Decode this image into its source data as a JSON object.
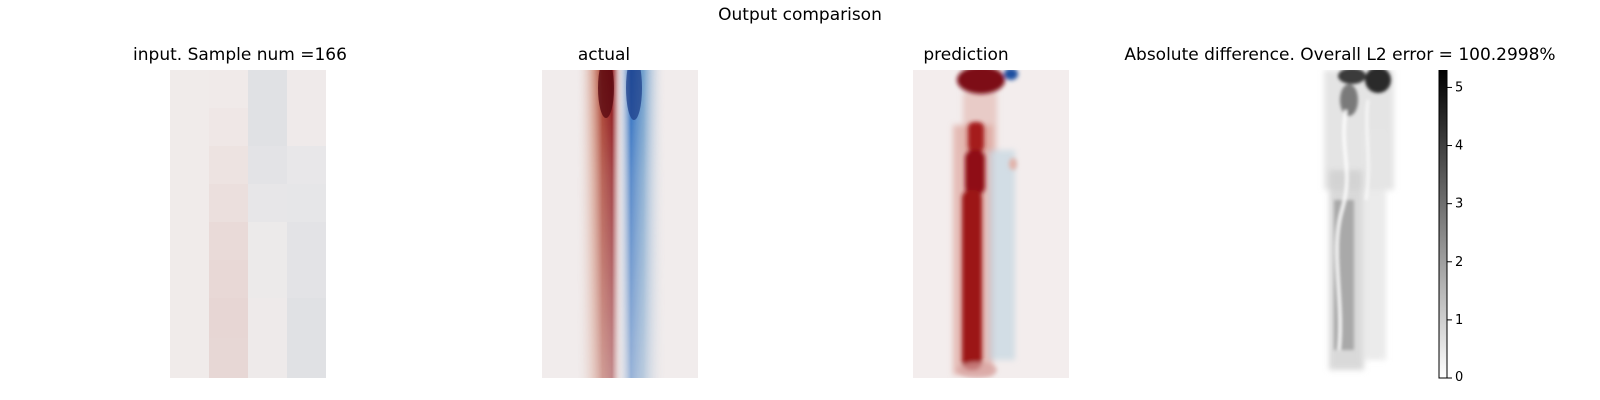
{
  "figure": {
    "title": "Output comparison"
  },
  "chart_data": [
    {
      "type": "heatmap",
      "title": "input. Sample num =166",
      "colormap": "red-white-blue (diverging)",
      "axis": "off"
    },
    {
      "type": "heatmap",
      "title": "actual",
      "colormap": "red-white-blue (diverging)",
      "axis": "off"
    },
    {
      "type": "heatmap",
      "title": "prediction",
      "colormap": "red-white-blue (diverging)",
      "axis": "off"
    },
    {
      "type": "heatmap",
      "title": "Absolute difference. Overall L2 error = 100.2998%",
      "colormap": "gray (white-black)",
      "axis": "off",
      "colorbar": {
        "range": [
          0,
          5.3
        ],
        "ticks": [
          "0",
          "1",
          "2",
          "3",
          "4",
          "5"
        ]
      }
    }
  ],
  "colors": {
    "red": "#8b0f14",
    "blue": "#1556b0",
    "neutral": "#f1ecec",
    "black": "#2a2a2a"
  }
}
